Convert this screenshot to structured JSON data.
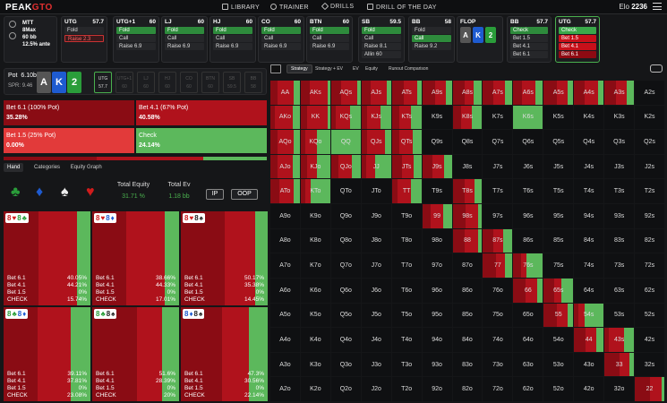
{
  "app": {
    "logo_a": "PEAK",
    "logo_b": "GTO"
  },
  "nav": [
    {
      "label": "LIBRARY",
      "icon": "book-icon"
    },
    {
      "label": "TRAINER",
      "icon": "target-icon"
    },
    {
      "label": "DRILLS",
      "icon": "drills-icon"
    },
    {
      "label": "DRILL OF THE DAY",
      "icon": "calendar-icon"
    }
  ],
  "elo": {
    "label": "Elo",
    "value": "2236"
  },
  "config": {
    "game": "MTT",
    "players": "8Max",
    "stack": "60 bb",
    "ante": "12.5% ante"
  },
  "seats": [
    {
      "pos": "UTG",
      "stack": "57.7",
      "actions": [
        "Fold",
        "Raise 2.3"
      ],
      "sel": 1,
      "sel_type": "red"
    },
    {
      "pos": "UTG+1",
      "stack": "60",
      "actions": [
        "Fold",
        "Call",
        "Raise 6.9"
      ],
      "sel": 0,
      "sel_type": "green"
    },
    {
      "pos": "LJ",
      "stack": "60",
      "actions": [
        "Fold",
        "Call",
        "Raise 6.9"
      ],
      "sel": 0,
      "sel_type": "green"
    },
    {
      "pos": "HJ",
      "stack": "60",
      "actions": [
        "Fold",
        "Call",
        "Raise 6.9"
      ],
      "sel": 0,
      "sel_type": "green"
    },
    {
      "pos": "CO",
      "stack": "60",
      "actions": [
        "Fold",
        "Call",
        "Raise 6.9"
      ],
      "sel": 0,
      "sel_type": "green"
    },
    {
      "pos": "BTN",
      "stack": "60",
      "actions": [
        "Fold",
        "Call",
        "Raise 6.9"
      ],
      "sel": 0,
      "sel_type": "green"
    },
    {
      "pos": "SB",
      "stack": "59.5",
      "actions": [
        "Fold",
        "Call",
        "Raise 8.1",
        "Allin 60"
      ],
      "sel": 0,
      "sel_type": "green"
    },
    {
      "pos": "BB",
      "stack": "58",
      "actions": [
        "Fold",
        "Call",
        "Raise 9.2"
      ],
      "sel": 1,
      "sel_type": "green"
    }
  ],
  "flop": {
    "label": "FLOP",
    "cards": [
      {
        "r": "A",
        "c": "#555"
      },
      {
        "r": "K",
        "c": "#1e5bd0"
      },
      {
        "r": "2",
        "c": "#2a9d3a"
      }
    ]
  },
  "bb_seat": {
    "pos": "BB",
    "stack": "57.7",
    "actions": [
      "Check",
      "Bet 1.5",
      "Bet 4.1",
      "Bet 6.1"
    ]
  },
  "utg_seat": {
    "pos": "UTG",
    "stack": "57.7",
    "actions": [
      "Check",
      "Bet 1.5",
      "Bet 4.1",
      "Bet 6.1"
    ]
  },
  "pot": {
    "label": "Pot",
    "value": "6.10bb",
    "spr_label": "SPR:",
    "spr": "9.46"
  },
  "board": [
    {
      "r": "A",
      "c": "#555"
    },
    {
      "r": "K",
      "c": "#1e5bd0"
    },
    {
      "r": "2",
      "c": "#2a9d3a"
    }
  ],
  "player_chips": [
    {
      "pos": "UTG",
      "stack": "57.7"
    },
    {
      "pos": "UTG+1",
      "stack": "60"
    },
    {
      "pos": "LJ",
      "stack": "60"
    },
    {
      "pos": "HJ",
      "stack": "60"
    },
    {
      "pos": "CO",
      "stack": "60"
    },
    {
      "pos": "BTN",
      "stack": "60"
    },
    {
      "pos": "SB",
      "stack": "59.5"
    },
    {
      "pos": "BB",
      "stack": "58"
    }
  ],
  "strategy": [
    {
      "label": "Bet 6.1 (100% Pot)",
      "pct": "35.28%",
      "color": "#8a0c14"
    },
    {
      "label": "Bet 4.1 (67% Pot)",
      "pct": "40.58%",
      "color": "#b0121c"
    },
    {
      "label": "Bet 1.5 (25% Pot)",
      "pct": "0.00%",
      "color": "#e23a3a"
    },
    {
      "label": "Check",
      "pct": "24.14%",
      "color": "#5cb85c"
    }
  ],
  "strategy_bar": [
    35.28,
    40.58,
    0.0,
    24.14
  ],
  "tabs": [
    "Hand",
    "Categories",
    "Equity Graph"
  ],
  "totals": {
    "equity_label": "Total Equity",
    "equity": "31.71 %",
    "ev_label": "Total Ev",
    "ev": "1.18 bb",
    "ip": "IP",
    "oop": "OOP"
  },
  "hands": [
    {
      "c1": "8",
      "s1": "♥",
      "k1": "#d01c1c",
      "c2": "8",
      "s2": "♣",
      "k2": "#2a9d3a",
      "rows": [
        [
          "Bet 6.1",
          "40.05%"
        ],
        [
          "Bet 4.1",
          "44.21%"
        ],
        [
          "Bet 1.5",
          "0%"
        ],
        [
          "CHECK",
          "15.74%"
        ]
      ],
      "mix": [
        40.05,
        44.21,
        0,
        15.74
      ]
    },
    {
      "c1": "8",
      "s1": "♥",
      "k1": "#d01c1c",
      "c2": "8",
      "s2": "♦",
      "k2": "#1e5bd0",
      "rows": [
        [
          "Bet 6.1",
          "38.66%"
        ],
        [
          "Bet 4.1",
          "44.33%"
        ],
        [
          "Bet 1.5",
          "0%"
        ],
        [
          "CHECK",
          "17.01%"
        ]
      ],
      "mix": [
        38.66,
        44.33,
        0,
        17.01
      ]
    },
    {
      "c1": "8",
      "s1": "♥",
      "k1": "#d01c1c",
      "c2": "8",
      "s2": "♠",
      "k2": "#222",
      "rows": [
        [
          "Bet 6.1",
          "50.17%"
        ],
        [
          "Bet 4.1",
          "35.38%"
        ],
        [
          "Bet 1.5",
          "0%"
        ],
        [
          "CHECK",
          "14.45%"
        ]
      ],
      "mix": [
        50.17,
        35.38,
        0,
        14.45
      ]
    },
    {
      "c1": "8",
      "s1": "♣",
      "k1": "#2a9d3a",
      "c2": "8",
      "s2": "♦",
      "k2": "#1e5bd0",
      "rows": [
        [
          "Bet 6.1",
          "39.11%"
        ],
        [
          "Bet 4.1",
          "37.81%"
        ],
        [
          "Bet 1.5",
          "0%"
        ],
        [
          "CHECK",
          "23.08%"
        ]
      ],
      "mix": [
        39.11,
        37.81,
        0,
        23.08
      ]
    },
    {
      "c1": "8",
      "s1": "♣",
      "k1": "#2a9d3a",
      "c2": "8",
      "s2": "♠",
      "k2": "#222",
      "rows": [
        [
          "Bet 6.1",
          "51.6%"
        ],
        [
          "Bet 4.1",
          "28.39%"
        ],
        [
          "Bet 1.5",
          "0%"
        ],
        [
          "CHECK",
          "20%"
        ]
      ],
      "mix": [
        51.6,
        28.39,
        0,
        20
      ]
    },
    {
      "c1": "8",
      "s1": "♦",
      "k1": "#1e5bd0",
      "c2": "8",
      "s2": "♠",
      "k2": "#222",
      "rows": [
        [
          "Bet 6.1",
          "47.3%"
        ],
        [
          "Bet 4.1",
          "30.56%"
        ],
        [
          "Bet 1.5",
          "0%"
        ],
        [
          "CHECK",
          "22.14%"
        ]
      ],
      "mix": [
        47.3,
        30.56,
        0,
        22.14
      ]
    }
  ],
  "right_tabs": [
    "Strategy",
    "Strategy + EV",
    "EV",
    "Equity",
    "Runout Comparison"
  ],
  "colors": {
    "dred": "#8a0c14",
    "red": "#b0121c",
    "green": "#5cb85c"
  },
  "grid": {
    "ranks": [
      "A",
      "K",
      "Q",
      "J",
      "T",
      "9",
      "8",
      "7",
      "6",
      "5",
      "4",
      "3",
      "2"
    ],
    "in_range": [
      [
        1,
        1,
        1,
        1,
        1,
        1,
        1,
        1,
        1,
        1,
        1,
        1,
        1
      ],
      [
        1,
        1,
        1,
        1,
        1,
        0,
        1,
        0,
        1,
        0,
        0,
        0,
        0
      ],
      [
        1,
        1,
        1,
        1,
        1,
        0,
        0,
        0,
        0,
        0,
        0,
        0,
        0
      ],
      [
        1,
        1,
        1,
        1,
        1,
        1,
        0,
        0,
        0,
        0,
        0,
        0,
        0
      ],
      [
        1,
        1,
        0,
        0,
        1,
        0,
        1,
        0,
        0,
        0,
        0,
        0,
        0
      ],
      [
        0,
        0,
        0,
        0,
        0,
        1,
        1,
        0,
        0,
        0,
        0,
        0,
        0
      ],
      [
        0,
        0,
        0,
        0,
        0,
        0,
        1,
        1,
        0,
        0,
        0,
        0,
        0
      ],
      [
        0,
        0,
        0,
        0,
        0,
        0,
        0,
        1,
        1,
        0,
        0,
        0,
        0
      ],
      [
        0,
        0,
        0,
        0,
        0,
        0,
        0,
        0,
        1,
        1,
        0,
        0,
        0
      ],
      [
        0,
        0,
        0,
        0,
        0,
        0,
        0,
        0,
        0,
        1,
        1,
        0,
        0
      ],
      [
        0,
        0,
        0,
        0,
        0,
        0,
        0,
        0,
        0,
        0,
        1,
        1,
        0
      ],
      [
        0,
        0,
        0,
        0,
        0,
        0,
        0,
        0,
        0,
        0,
        0,
        1,
        0
      ],
      [
        0,
        0,
        0,
        0,
        0,
        0,
        0,
        0,
        0,
        0,
        0,
        0,
        1
      ]
    ],
    "mix": {
      "AA": [
        25,
        55,
        20
      ],
      "AKs": [
        30,
        60,
        10
      ],
      "AQs": [
        35,
        55,
        10
      ],
      "AJs": [
        30,
        55,
        15
      ],
      "ATs": [
        40,
        45,
        15
      ],
      "A9s": [
        45,
        35,
        20
      ],
      "A8s": [
        40,
        30,
        30
      ],
      "A7s": [
        35,
        40,
        25
      ],
      "A6s": [
        30,
        45,
        25
      ],
      "A5s": [
        45,
        35,
        20
      ],
      "A4s": [
        35,
        45,
        20
      ],
      "A3s": [
        40,
        35,
        25
      ],
      "A2s": [
        0,
        0,
        0
      ],
      "AKo": [
        15,
        60,
        25
      ],
      "KK": [
        20,
        70,
        10
      ],
      "KQs": [
        15,
        50,
        35
      ],
      "KJs": [
        20,
        45,
        35
      ],
      "KTs": [
        25,
        40,
        35
      ],
      "K8s": [
        30,
        35,
        35
      ],
      "K6s": [
        0,
        0,
        100
      ],
      "AQo": [
        25,
        55,
        20
      ],
      "KQo": [
        15,
        40,
        45
      ],
      "QQ": [
        0,
        0,
        100
      ],
      "QJs": [
        20,
        60,
        20
      ],
      "QTs": [
        25,
        45,
        30
      ],
      "AJo": [
        25,
        50,
        25
      ],
      "KJo": [
        20,
        35,
        45
      ],
      "QJo": [
        25,
        45,
        30
      ],
      "JJ": [
        15,
        30,
        55
      ],
      "JTs": [
        35,
        40,
        25
      ],
      "J9s": [
        35,
        40,
        25
      ],
      "ATo": [
        30,
        50,
        20
      ],
      "KTo": [
        15,
        20,
        65
      ],
      "TT": [
        20,
        45,
        35
      ],
      "T8s": [
        40,
        35,
        25
      ],
      "99": [
        30,
        40,
        30
      ],
      "98s": [
        45,
        40,
        15
      ],
      "88": [
        40,
        45,
        15
      ],
      "87s": [
        35,
        35,
        30
      ],
      "77": [
        45,
        30,
        25
      ],
      "76s": [
        25,
        20,
        55
      ],
      "66": [
        40,
        40,
        20
      ],
      "65s": [
        35,
        25,
        40
      ],
      "55": [
        45,
        35,
        20
      ],
      "54s": [
        15,
        20,
        65
      ],
      "44": [
        40,
        35,
        25
      ],
      "43s": [
        15,
        50,
        35
      ],
      "33": [
        50,
        35,
        15
      ],
      "22": [
        50,
        40,
        10
      ]
    }
  }
}
